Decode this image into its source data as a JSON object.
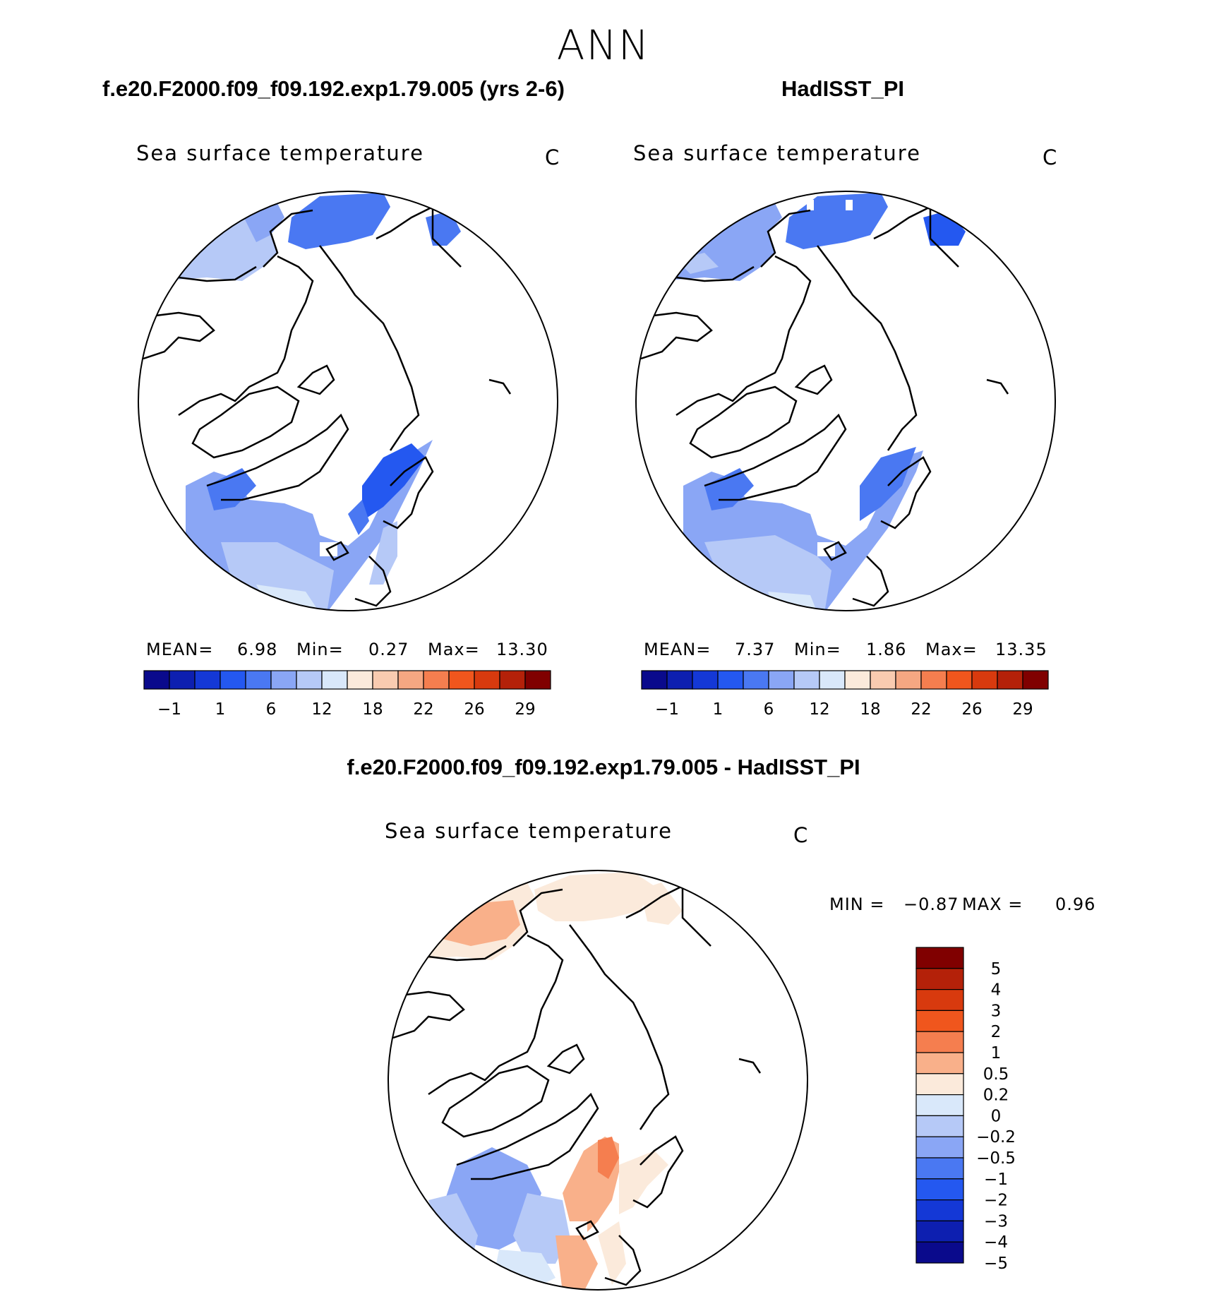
{
  "header": {
    "season": "ANN"
  },
  "chart_data": [
    {
      "type": "polar-map",
      "title": "f.e20.F2000.f09_f09.192.exp1.79.005 (yrs 2-6)",
      "variable": "Sea surface temperature",
      "units": "C",
      "stats": {
        "mean_label": "MEAN=",
        "mean": "6.98",
        "min_label": "Min=",
        "min": "0.27",
        "max_label": "Max=",
        "max": "13.30"
      }
    },
    {
      "type": "polar-map",
      "title": "HadISST_PI",
      "variable": "Sea surface temperature",
      "units": "C",
      "stats": {
        "mean_label": "MEAN=",
        "mean": "7.37",
        "min_label": "Min=",
        "min": "1.86",
        "max_label": "Max=",
        "max": "13.35"
      }
    },
    {
      "type": "polar-map-difference",
      "title": "f.e20.F2000.f09_f09.192.exp1.79.005 - HadISST_PI",
      "variable": "Sea surface temperature",
      "units": "C",
      "stats": {
        "min_label": "MIN =",
        "min": "−0.87",
        "max_label": "MAX =",
        "max": "0.96"
      }
    }
  ],
  "colorbar_sst": {
    "colors": [
      "#0a0a8c",
      "#0d1fb0",
      "#1438d6",
      "#2458f0",
      "#4a78f2",
      "#8aa6f5",
      "#b6c9f7",
      "#d9e8fa",
      "#fbeadb",
      "#f9cbb0",
      "#f5a782",
      "#f57e4f",
      "#f0561d",
      "#d83a0e",
      "#b42109",
      "#800000"
    ],
    "tick_labels": [
      "−1",
      "1",
      "6",
      "12",
      "18",
      "22",
      "26",
      "29"
    ]
  },
  "colorbar_diff": {
    "colors": [
      "#800000",
      "#b42109",
      "#d83a0e",
      "#f0561d",
      "#f57e4f",
      "#f9b08a",
      "#fbeadb",
      "#d9e8fa",
      "#b6c9f7",
      "#8aa6f5",
      "#4a78f2",
      "#2458f0",
      "#1438d6",
      "#0d1fb0",
      "#0a0a8c"
    ],
    "tick_labels": [
      "5",
      "4",
      "3",
      "2",
      "1",
      "0.5",
      "0.2",
      "0",
      "−0.2",
      "−0.5",
      "−1",
      "−2",
      "−3",
      "−4",
      "−5"
    ]
  }
}
